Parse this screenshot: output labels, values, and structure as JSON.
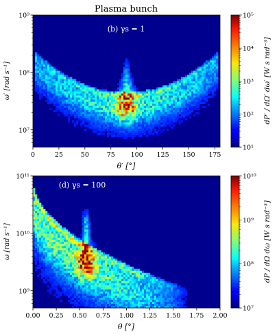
{
  "figure_title": "Plasma bunch",
  "chart_data": [
    {
      "type": "heatmap",
      "panel_label": "(b) γs = 1",
      "title": "",
      "xlabel": "θ′ [°]",
      "ylabel": "ω′ [rad s⁻¹]",
      "xlim": [
        0,
        180
      ],
      "ylim": [
        5000000.0,
        1000000000.0
      ],
      "yscale": "log",
      "x_ticks": [
        0,
        25,
        50,
        75,
        100,
        125,
        150,
        175
      ],
      "x_tick_labels": [
        "0",
        "25",
        "50",
        "75",
        "100",
        "125",
        "150",
        "175"
      ],
      "y_ticks": [
        10000000.0,
        100000000.0,
        1000000000.0
      ],
      "y_tick_labels": [
        "10⁷",
        "10⁸",
        "10⁹"
      ],
      "colorbar": {
        "label": "dP′ / dΩ′ dω′ [W s rad⁻³]",
        "scale": "log",
        "range": [
          10,
          100000
        ],
        "ticks": [
          10,
          100,
          1000,
          10000,
          100000
        ],
        "tick_labels": [
          "10¹",
          "10²",
          "10³",
          "10⁴",
          "10⁵"
        ],
        "colormap": "jet"
      },
      "features": {
        "arc_min_at_theta": 90,
        "arc_min_frequency": 40000000.0,
        "arc_frequency_at_edges": 220000000.0,
        "peak_theta": 90,
        "peak_frequency_range": [
          15000000.0,
          45000000.0
        ],
        "peak_max_value": 50000,
        "spike_theta": 90,
        "spike_top_frequency": 150000000.0
      }
    },
    {
      "type": "heatmap",
      "panel_label": "(d) γs = 100",
      "title": "",
      "xlabel": "θ [°]",
      "ylabel": "ω [rad s⁻¹]",
      "xlim": [
        0,
        2
      ],
      "ylim": [
        500000000.0,
        100000000000.0
      ],
      "yscale": "log",
      "x_ticks": [
        0,
        0.25,
        0.5,
        0.75,
        1.0,
        1.25,
        1.5,
        1.75,
        2.0
      ],
      "x_tick_labels": [
        "0.00",
        "0.25",
        "0.50",
        "0.75",
        "1.00",
        "1.25",
        "1.50",
        "1.75",
        "2.00"
      ],
      "y_ticks": [
        1000000000.0,
        10000000000.0,
        100000000000.0
      ],
      "y_tick_labels": [
        "10⁹",
        "10¹⁰",
        "10¹¹"
      ],
      "colorbar": {
        "label": "dP / dΩ dω [W s rad⁻³]",
        "scale": "log",
        "range": [
          10000000.0,
          10000000000.0
        ],
        "ticks": [
          10000000.0,
          100000000.0,
          1000000000.0,
          10000000000.0
        ],
        "tick_labels": [
          "10⁷",
          "10⁸",
          "10⁹",
          "10¹⁰"
        ],
        "colormap": "jet"
      },
      "features": {
        "band_upper_frequency_at_theta_0": 80000000000.0,
        "band_upper_frequency_at_theta_1_5": 1200000000.0,
        "peak_theta": 0.57,
        "peak_frequency_range": [
          2000000000.0,
          5000000000.0
        ],
        "peak_max_value": 8000000000.0,
        "spike_theta": 0.57,
        "spike_top_frequency": 25000000000.0
      }
    }
  ]
}
